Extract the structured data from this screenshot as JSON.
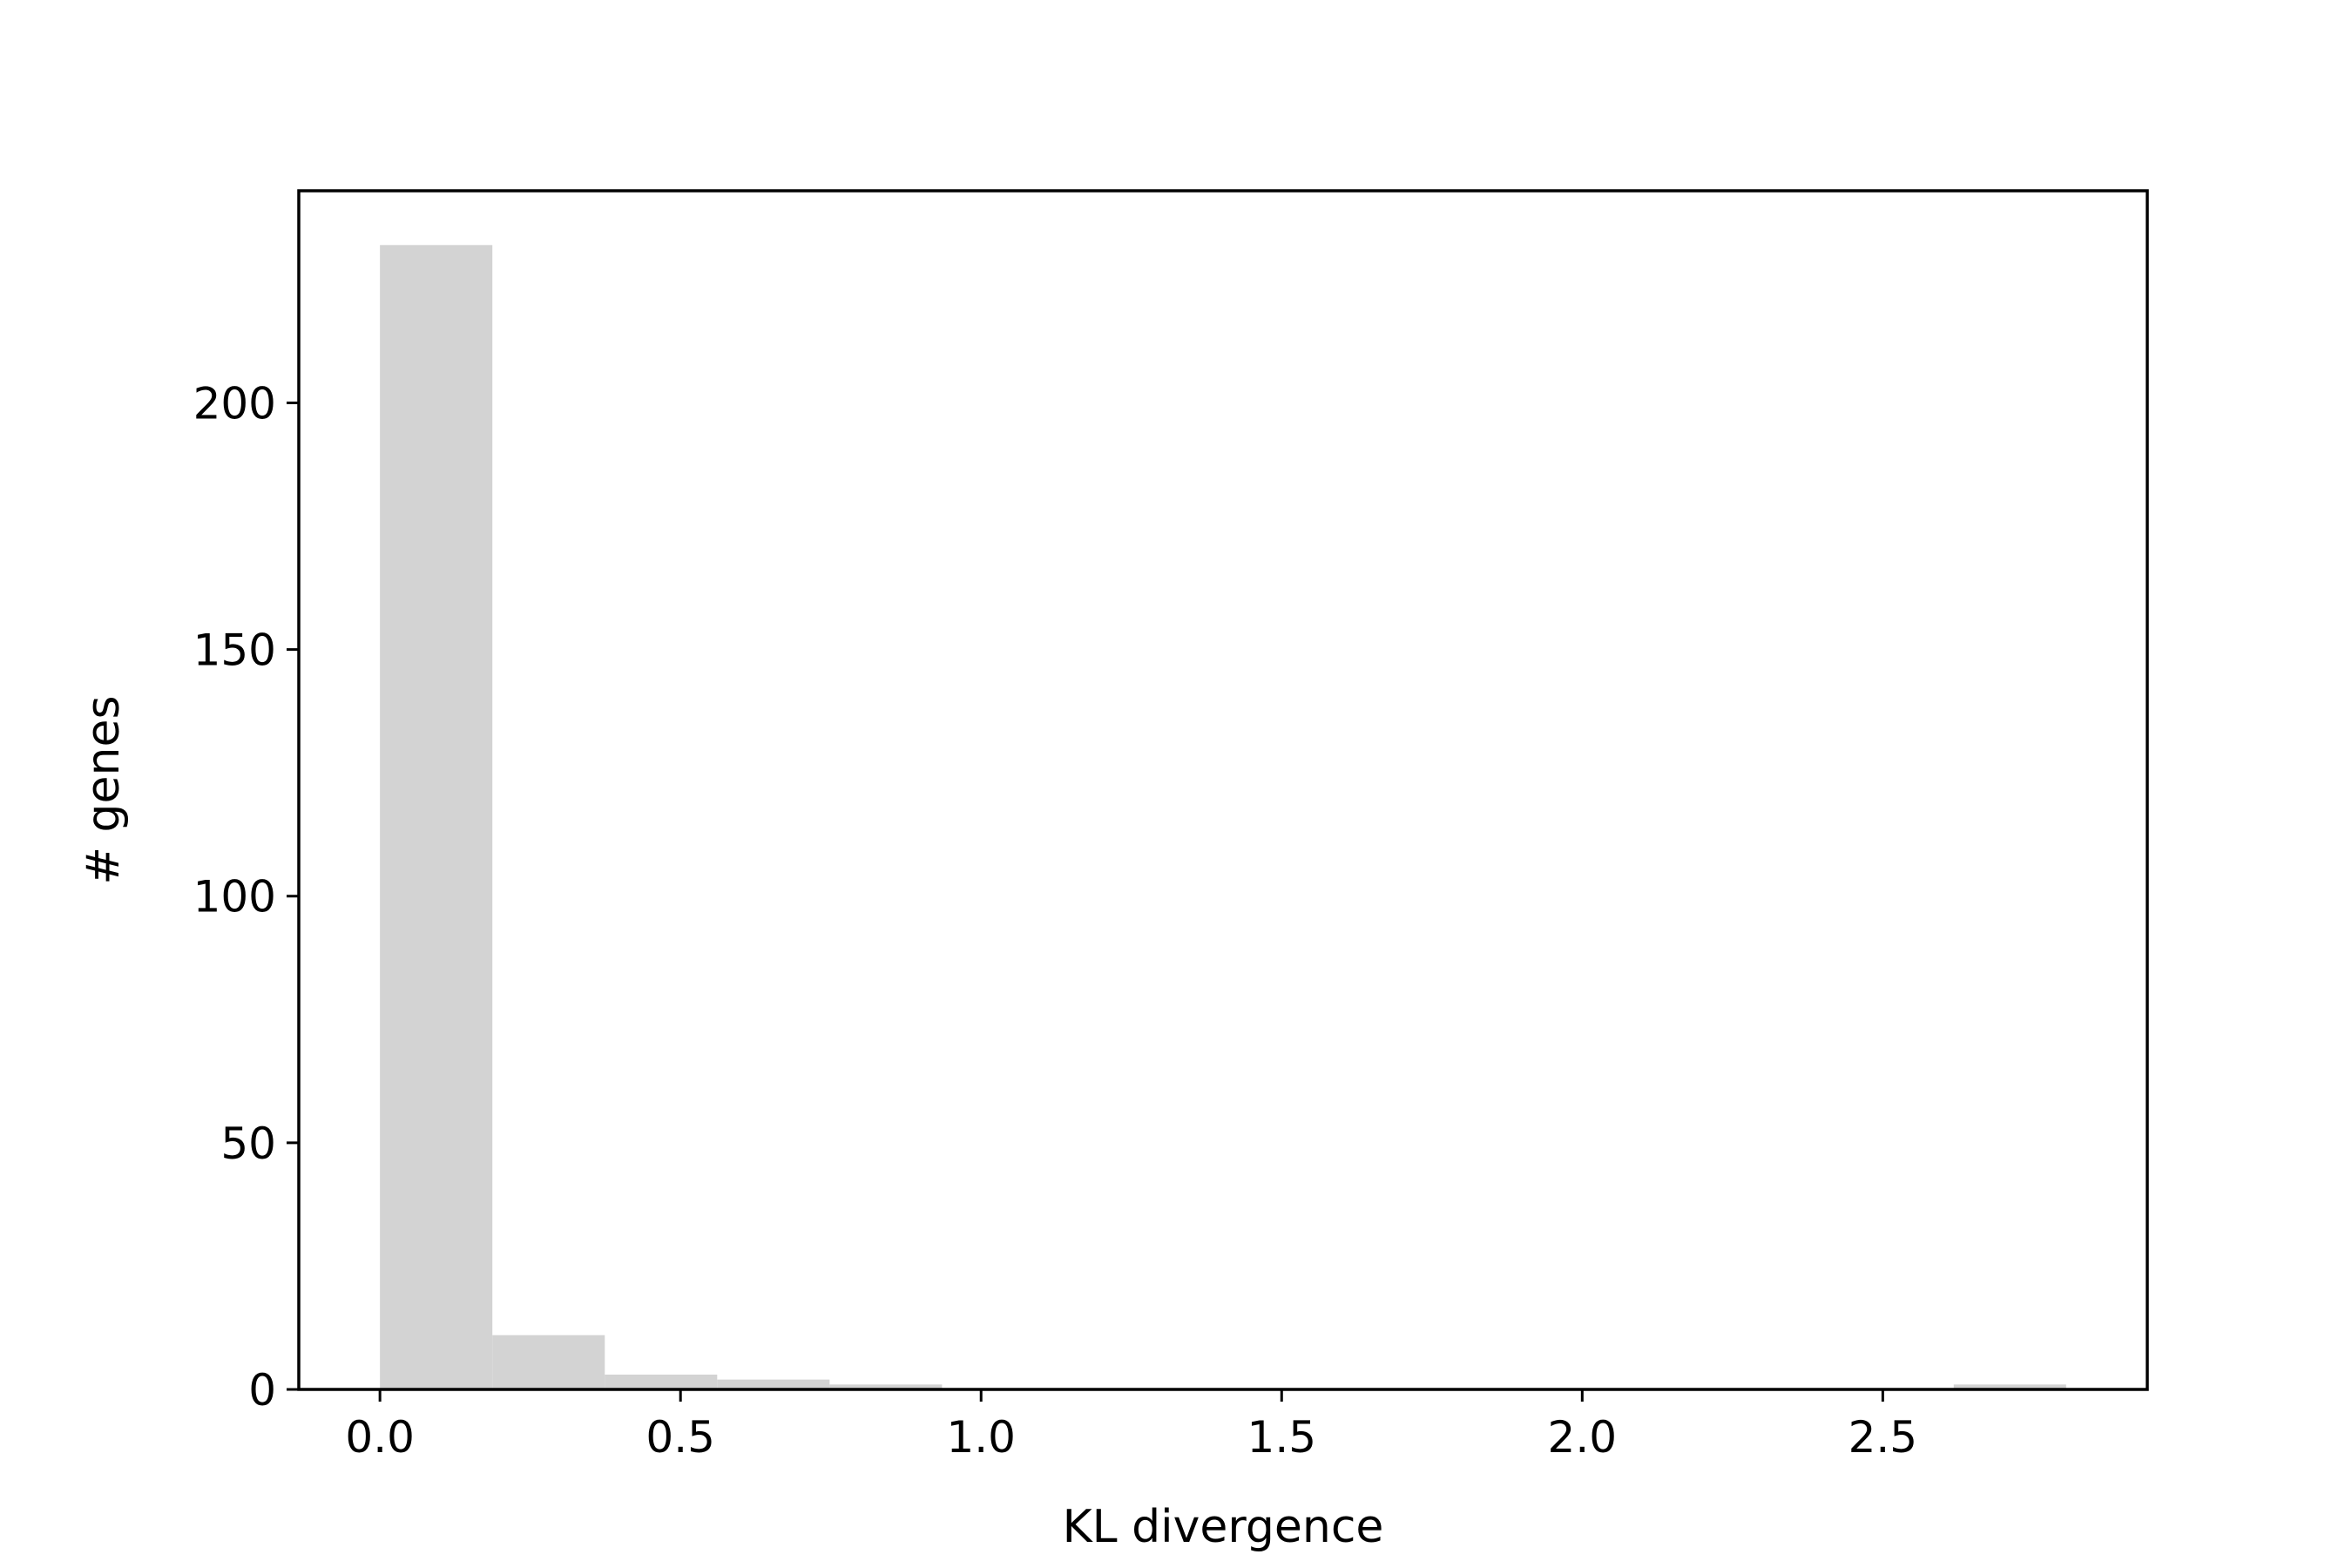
{
  "chart_data": {
    "type": "bar",
    "title": "",
    "xlabel": "KL divergence",
    "ylabel": "# genes",
    "xlim": [
      -0.135,
      2.94
    ],
    "ylim": [
      0,
      243
    ],
    "grid": false,
    "legend": "none",
    "bar_color": "#d3d3d3",
    "xticks": [
      {
        "value": 0.0,
        "label": "0.0"
      },
      {
        "value": 0.5,
        "label": "0.5"
      },
      {
        "value": 1.0,
        "label": "1.0"
      },
      {
        "value": 1.5,
        "label": "1.5"
      },
      {
        "value": 2.0,
        "label": "2.0"
      },
      {
        "value": 2.5,
        "label": "2.5"
      }
    ],
    "yticks": [
      {
        "value": 0,
        "label": "0"
      },
      {
        "value": 50,
        "label": "50"
      },
      {
        "value": 100,
        "label": "100"
      },
      {
        "value": 150,
        "label": "150"
      },
      {
        "value": 200,
        "label": "200"
      }
    ],
    "bins": [
      {
        "start": 0.0,
        "end": 0.187,
        "count": 232
      },
      {
        "start": 0.187,
        "end": 0.374,
        "count": 11
      },
      {
        "start": 0.374,
        "end": 0.561,
        "count": 3
      },
      {
        "start": 0.561,
        "end": 0.748,
        "count": 2
      },
      {
        "start": 0.748,
        "end": 0.935,
        "count": 1
      },
      {
        "start": 0.935,
        "end": 1.122,
        "count": 0
      },
      {
        "start": 1.122,
        "end": 1.309,
        "count": 0
      },
      {
        "start": 1.309,
        "end": 1.496,
        "count": 0
      },
      {
        "start": 1.496,
        "end": 1.683,
        "count": 0
      },
      {
        "start": 1.683,
        "end": 1.87,
        "count": 0
      },
      {
        "start": 1.87,
        "end": 2.057,
        "count": 0
      },
      {
        "start": 2.057,
        "end": 2.244,
        "count": 0
      },
      {
        "start": 2.244,
        "end": 2.431,
        "count": 0
      },
      {
        "start": 2.431,
        "end": 2.618,
        "count": 0
      },
      {
        "start": 2.618,
        "end": 2.805,
        "count": 1
      }
    ]
  }
}
